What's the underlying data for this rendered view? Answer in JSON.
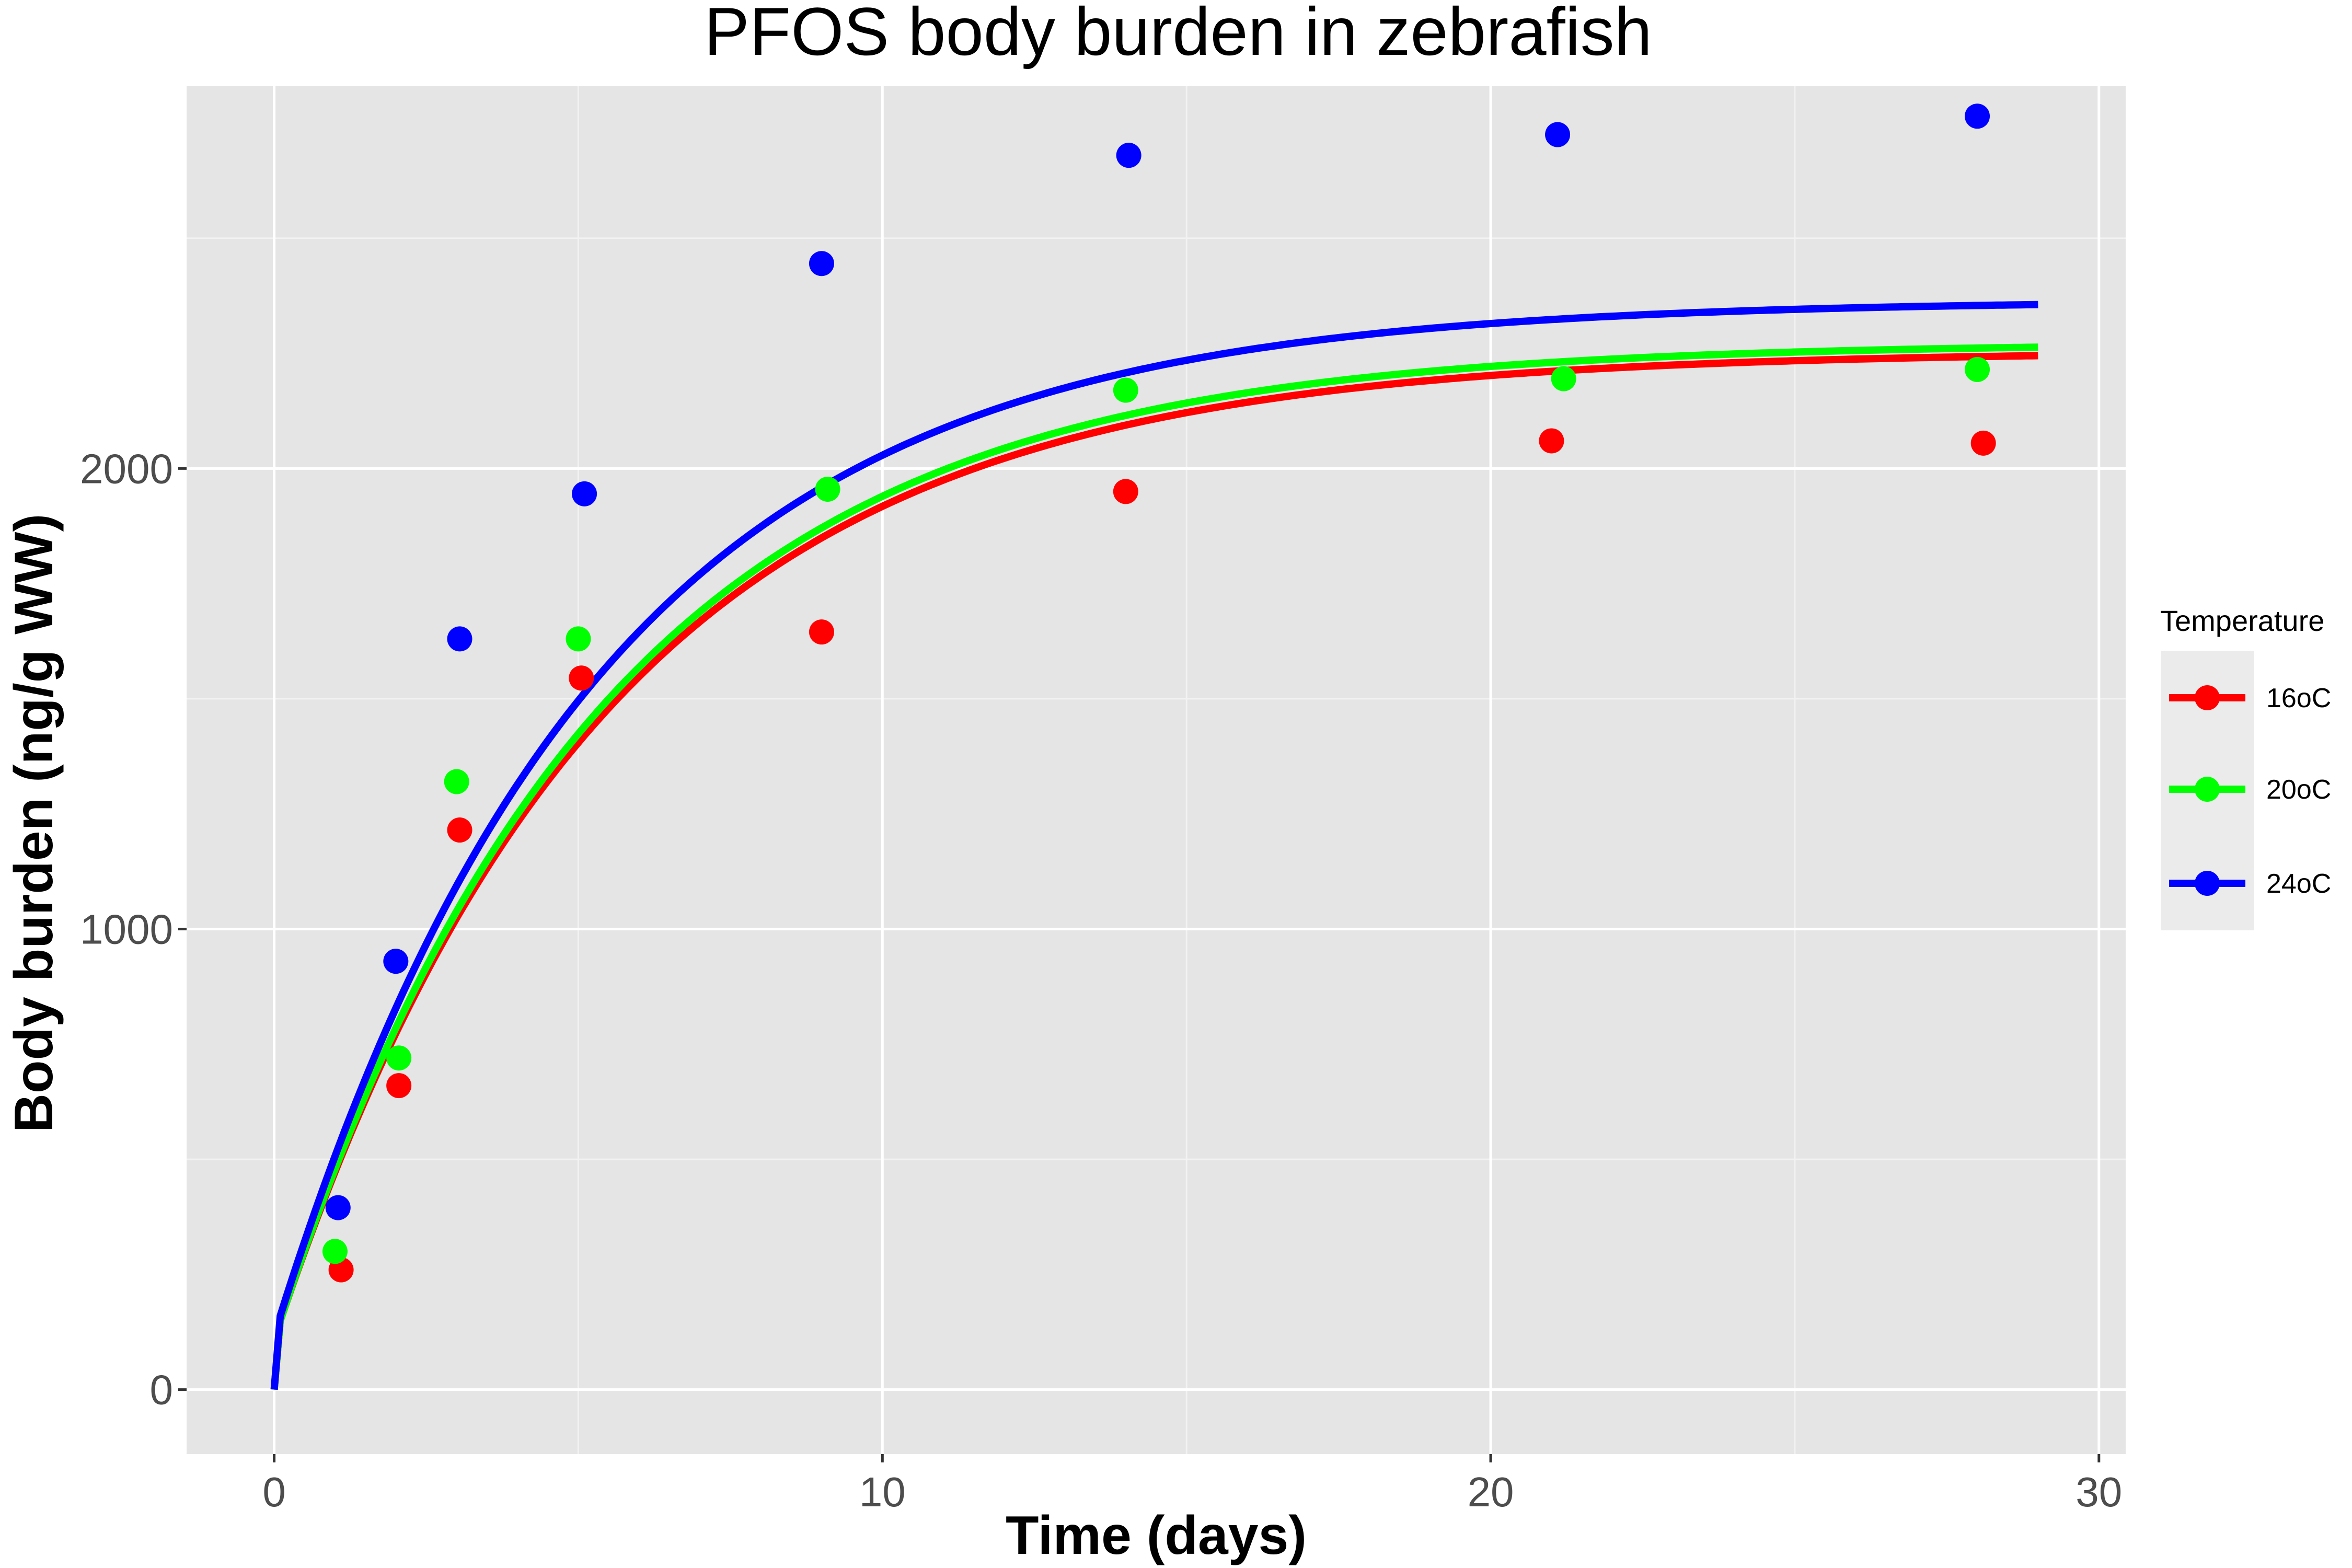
{
  "chart_data": {
    "type": "scatter",
    "title": "PFOS body burden in zebrafish",
    "xlabel": "Time (days)",
    "ylabel": "Body burden (ng/g WW)",
    "xlim": [
      -1.44,
      30.44
    ],
    "ylim": [
      -140,
      2830
    ],
    "x_ticks": [
      0,
      10,
      20,
      30
    ],
    "x_tick_labels": [
      "0",
      "10",
      "20",
      "30"
    ],
    "y_ticks": [
      0,
      1000,
      2000
    ],
    "y_tick_labels": [
      "0",
      "1000",
      "2000"
    ],
    "grid": true,
    "legend": {
      "title": "Temperature",
      "position": "right"
    },
    "series": [
      {
        "name": "16oC",
        "color": "#ff0000",
        "points": [
          [
            1.1,
            260
          ],
          [
            2.05,
            660
          ],
          [
            3.05,
            1215
          ],
          [
            5.05,
            1545
          ],
          [
            9,
            1645
          ],
          [
            14,
            1950
          ],
          [
            21,
            2060
          ],
          [
            28.1,
            2055
          ]
        ],
        "fit": {
          "x_max": 29,
          "asymptote": 2255,
          "rate": 0.185,
          "y_at_0_1": 150
        }
      },
      {
        "name": "20oC",
        "color": "#00ff00",
        "points": [
          [
            1,
            300
          ],
          [
            2.05,
            720
          ],
          [
            3,
            1320
          ],
          [
            5,
            1630
          ],
          [
            9.1,
            1955
          ],
          [
            14,
            2170
          ],
          [
            21.2,
            2195
          ],
          [
            28,
            2215
          ]
        ],
        "fit": {
          "x_max": 29,
          "asymptote": 2273,
          "rate": 0.187,
          "y_at_0_1": 150
        }
      },
      {
        "name": "24oC",
        "color": "#0000ff",
        "points": [
          [
            1.05,
            395
          ],
          [
            2,
            930
          ],
          [
            3.05,
            1630
          ],
          [
            5.1,
            1945
          ],
          [
            9,
            2445
          ],
          [
            14.05,
            2680
          ],
          [
            21.1,
            2725
          ],
          [
            28,
            2765
          ]
        ],
        "fit": {
          "x_max": 29,
          "asymptote": 2365,
          "rate": 0.19,
          "y_at_0_1": 160
        }
      }
    ]
  }
}
